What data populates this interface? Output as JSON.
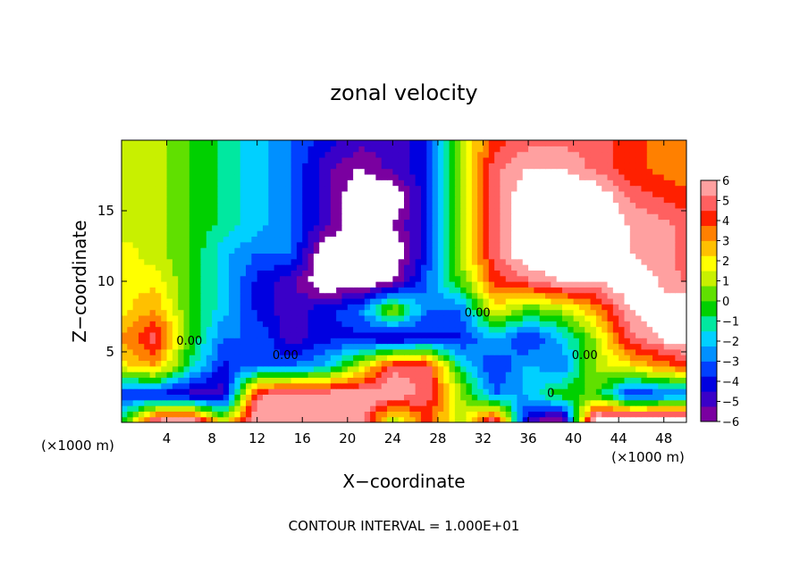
{
  "chart_data": {
    "type": "heatmap",
    "title": "zonal velocity",
    "xlabel": "X−coordinate",
    "ylabel": "Z−coordinate",
    "x_unit_left": "(×1000 m)",
    "x_unit_right": "(×1000 m)",
    "footer": "CONTOUR INTERVAL = 1.000E+01",
    "xlim": [
      0,
      50
    ],
    "ylim": [
      0,
      20
    ],
    "xticks": [
      4,
      8,
      12,
      16,
      20,
      24,
      28,
      32,
      36,
      40,
      44,
      48
    ],
    "yticks": [
      5,
      10,
      15
    ],
    "colorbar": {
      "range": [
        -6,
        6
      ],
      "ticks": [
        6,
        5,
        4,
        3,
        2,
        1,
        0,
        -1,
        -2,
        -3,
        -4,
        -5,
        -6
      ],
      "tick_labels": [
        "6",
        "5",
        "4",
        "3",
        "2",
        "1",
        "0",
        "−1",
        "−2",
        "−3",
        "−4",
        "−5",
        "−6"
      ],
      "colors": [
        "#7a00a0",
        "#3a00c8",
        "#0000e0",
        "#0040ff",
        "#0090ff",
        "#00d0ff",
        "#00e8a0",
        "#00d000",
        "#60e000",
        "#c8f000",
        "#ffff00",
        "#ffc000",
        "#ff8000",
        "#ff2000",
        "#ff6060",
        "#ffa0a0"
      ]
    },
    "contour_labels": [
      {
        "text": "0.00",
        "x": 6.0,
        "z": 5.5
      },
      {
        "text": "0.00",
        "x": 14.5,
        "z": 4.5
      },
      {
        "text": "0.00",
        "x": 31.5,
        "z": 7.5
      },
      {
        "text": "0.00",
        "x": 41.0,
        "z": 4.5
      },
      {
        "text": "0",
        "x": 38.0,
        "z": 1.8
      }
    ],
    "field_grid": {
      "x": [
        0,
        3,
        6,
        9,
        12,
        15,
        18,
        21,
        24,
        27,
        30,
        33,
        36,
        39,
        42,
        45,
        50
      ],
      "z": [
        0.2,
        2,
        4,
        6,
        8,
        10,
        12,
        14,
        16,
        18,
        20
      ],
      "values": [
        [
          -1,
          5,
          6,
          1,
          6,
          6,
          6,
          6,
          1,
          4,
          1,
          5,
          -5,
          -6,
          7,
          7,
          7
        ],
        [
          -4,
          -4,
          -5,
          -5,
          5,
          6,
          6,
          6,
          6,
          5,
          1,
          -3,
          -2,
          0,
          0,
          -4,
          -3
        ],
        [
          2,
          3,
          -1,
          -4,
          -3,
          -3,
          -2,
          1,
          5,
          5,
          -1,
          -4,
          -2,
          -3,
          1,
          2,
          4
        ],
        [
          3,
          5,
          0,
          -3,
          -3,
          -5,
          -4,
          -4,
          -5,
          -4,
          -4,
          -2,
          -4,
          -2,
          1,
          5,
          7
        ],
        [
          2,
          3,
          0,
          -2,
          -4,
          -5,
          -4,
          -3,
          1,
          -3,
          -3,
          2,
          0,
          1,
          3,
          6,
          7
        ],
        [
          2,
          2,
          0,
          -2,
          -4,
          -5,
          -7,
          -7,
          -6,
          -3,
          0,
          4,
          5,
          6,
          6,
          7,
          5
        ],
        [
          2,
          1,
          0,
          -2,
          -3,
          -3,
          -7,
          -7,
          -7,
          -4,
          1,
          5,
          7,
          7,
          7,
          6,
          5
        ],
        [
          1,
          1,
          0,
          -1,
          -2,
          -3,
          -5,
          -7,
          -6,
          -4,
          1,
          5,
          7,
          7,
          7,
          6,
          5
        ],
        [
          1,
          1,
          0,
          -1,
          -2,
          -3,
          -5,
          -7,
          -7,
          -4,
          1,
          5,
          7,
          7,
          7,
          5,
          4
        ],
        [
          1,
          1,
          0,
          -1,
          -2,
          -3,
          -5,
          -6,
          -5,
          -4,
          1,
          5,
          6,
          6,
          5,
          4,
          3
        ],
        [
          1,
          1,
          0,
          -1,
          -2,
          -3,
          -4,
          -5,
          -5,
          -4,
          1,
          4,
          5,
          5,
          5,
          4,
          3
        ]
      ]
    }
  }
}
